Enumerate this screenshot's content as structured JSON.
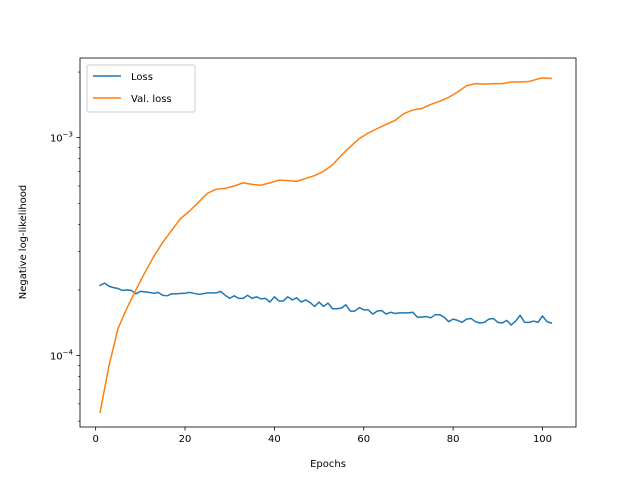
{
  "chart_data": {
    "type": "line",
    "xlabel": "Epochs",
    "ylabel": "Negative log-likelihood",
    "xlim": [
      -3.5,
      107.5
    ],
    "ylim": [
      4.7e-05,
      0.00232
    ],
    "yscale": "log",
    "x_ticks": [
      0,
      20,
      40,
      60,
      80,
      100
    ],
    "y_ticks": [
      {
        "value": 0.0001,
        "base": "10",
        "exp": "−4"
      },
      {
        "value": 0.001,
        "base": "10",
        "exp": "−3"
      }
    ],
    "grid": false,
    "legend": {
      "placement": "top-left"
    },
    "series": [
      {
        "name": "Loss",
        "color": "#1f77b4",
        "points": [
          [
            1,
            0.00021
          ],
          [
            2,
            0.000215
          ],
          [
            3,
            0.000208
          ],
          [
            4,
            0.000205
          ],
          [
            5,
            0.000203
          ],
          [
            6,
            0.000199
          ],
          [
            7,
            0.0002
          ],
          [
            8,
            0.000199
          ],
          [
            9,
            0.000192
          ],
          [
            10,
            0.000197
          ],
          [
            11,
            0.000196
          ],
          [
            12,
            0.000195
          ],
          [
            13,
            0.000193
          ],
          [
            14,
            0.000195
          ],
          [
            15,
            0.000189
          ],
          [
            16,
            0.000188
          ],
          [
            17,
            0.000192
          ],
          [
            18,
            0.000192
          ],
          [
            19,
            0.000193
          ],
          [
            20,
            0.000193
          ],
          [
            21,
            0.000195
          ],
          [
            22,
            0.000193
          ],
          [
            23,
            0.000191
          ],
          [
            24,
            0.000192
          ],
          [
            25,
            0.000194
          ],
          [
            26,
            0.000194
          ],
          [
            27,
            0.000194
          ],
          [
            28,
            0.000197
          ],
          [
            29,
            0.000189
          ],
          [
            30,
            0.000183
          ],
          [
            31,
            0.000188
          ],
          [
            32,
            0.000183
          ],
          [
            33,
            0.000183
          ],
          [
            34,
            0.000189
          ],
          [
            35,
            0.000183
          ],
          [
            36,
            0.000186
          ],
          [
            37,
            0.000182
          ],
          [
            38,
            0.000183
          ],
          [
            39,
            0.000176
          ],
          [
            40,
            0.000186
          ],
          [
            41,
            0.000178
          ],
          [
            42,
            0.000178
          ],
          [
            43,
            0.000186
          ],
          [
            44,
            0.00018
          ],
          [
            45,
            0.000184
          ],
          [
            46,
            0.000176
          ],
          [
            47,
            0.00018
          ],
          [
            48,
            0.000175
          ],
          [
            49,
            0.000168
          ],
          [
            50,
            0.000176
          ],
          [
            51,
            0.000168
          ],
          [
            52,
            0.000174
          ],
          [
            53,
            0.000164
          ],
          [
            54,
            0.000164
          ],
          [
            55,
            0.000165
          ],
          [
            56,
            0.000171
          ],
          [
            57,
            0.00016
          ],
          [
            58,
            0.00016
          ],
          [
            59,
            0.000166
          ],
          [
            60,
            0.000162
          ],
          [
            61,
            0.000162
          ],
          [
            62,
            0.000155
          ],
          [
            63,
            0.00016
          ],
          [
            64,
            0.000161
          ],
          [
            65,
            0.000155
          ],
          [
            66,
            0.000158
          ],
          [
            67,
            0.000156
          ],
          [
            68,
            0.000157
          ],
          [
            69,
            0.000157
          ],
          [
            70,
            0.000157
          ],
          [
            71,
            0.000158
          ],
          [
            72,
            0.00015
          ],
          [
            73,
            0.00015
          ],
          [
            74,
            0.000151
          ],
          [
            75,
            0.000149
          ],
          [
            76,
            0.000154
          ],
          [
            77,
            0.000154
          ],
          [
            78,
            0.00015
          ],
          [
            79,
            0.000143
          ],
          [
            80,
            0.000147
          ],
          [
            81,
            0.000145
          ],
          [
            82,
            0.000142
          ],
          [
            83,
            0.000147
          ],
          [
            84,
            0.000148
          ],
          [
            85,
            0.000143
          ],
          [
            86,
            0.000141
          ],
          [
            87,
            0.000142
          ],
          [
            88,
            0.000147
          ],
          [
            89,
            0.000148
          ],
          [
            90,
            0.000142
          ],
          [
            91,
            0.000141
          ],
          [
            92,
            0.000145
          ],
          [
            93,
            0.000138
          ],
          [
            94,
            0.000144
          ],
          [
            95,
            0.000153
          ],
          [
            96,
            0.000142
          ],
          [
            97,
            0.000142
          ],
          [
            98,
            0.000144
          ],
          [
            99,
            0.000142
          ],
          [
            100,
            0.000152
          ],
          [
            101,
            0.000143
          ],
          [
            102,
            0.000141
          ]
        ]
      },
      {
        "name": "Val. loss",
        "color": "#ff7f0e",
        "points": [
          [
            1,
            5.5e-05
          ],
          [
            3,
            9e-05
          ],
          [
            5,
            0.000133
          ],
          [
            7,
            0.000165
          ],
          [
            9,
            0.0002
          ],
          [
            11,
            0.00024
          ],
          [
            13,
            0.000285
          ],
          [
            15,
            0.00033
          ],
          [
            17,
            0.000375
          ],
          [
            19,
            0.000425
          ],
          [
            21,
            0.00046
          ],
          [
            23,
            0.000505
          ],
          [
            25,
            0.000555
          ],
          [
            27,
            0.00058
          ],
          [
            29,
            0.000585
          ],
          [
            31,
            0.0006
          ],
          [
            33,
            0.00062
          ],
          [
            35,
            0.00061
          ],
          [
            37,
            0.000605
          ],
          [
            39,
            0.00062
          ],
          [
            41,
            0.000638
          ],
          [
            43,
            0.000635
          ],
          [
            45,
            0.00063
          ],
          [
            47,
            0.00065
          ],
          [
            49,
            0.00067
          ],
          [
            51,
            0.0007
          ],
          [
            53,
            0.00075
          ],
          [
            55,
            0.00083
          ],
          [
            57,
            0.00091
          ],
          [
            59,
            0.00099
          ],
          [
            61,
            0.00105
          ],
          [
            63,
            0.0011
          ],
          [
            65,
            0.00115
          ],
          [
            67,
            0.0012
          ],
          [
            69,
            0.00129
          ],
          [
            71,
            0.00134
          ],
          [
            73,
            0.00136
          ],
          [
            75,
            0.00142
          ],
          [
            77,
            0.00147
          ],
          [
            79,
            0.00153
          ],
          [
            81,
            0.00162
          ],
          [
            83,
            0.00173
          ],
          [
            85,
            0.00177
          ],
          [
            87,
            0.00176
          ],
          [
            89,
            0.00177
          ],
          [
            91,
            0.00177
          ],
          [
            93,
            0.0018
          ],
          [
            95,
            0.0018
          ],
          [
            97,
            0.00181
          ],
          [
            99,
            0.00186
          ],
          [
            100,
            0.00188
          ],
          [
            102,
            0.00187
          ]
        ]
      }
    ]
  }
}
